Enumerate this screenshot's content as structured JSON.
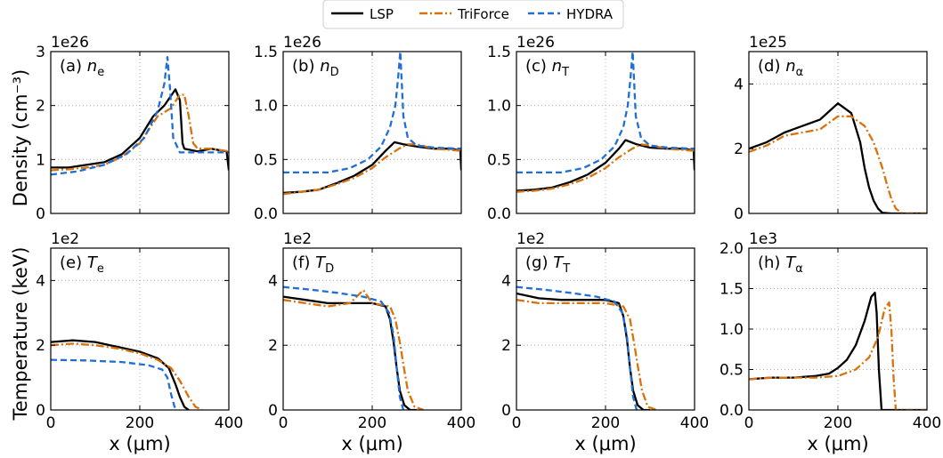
{
  "figure": {
    "legend": [
      {
        "name": "LSP",
        "color": "#000000",
        "dash": "solid"
      },
      {
        "name": "TriForce",
        "color": "#d9720c",
        "dash": "dashdot"
      },
      {
        "name": "HYDRA",
        "color": "#1f6fd6",
        "dash": "dashed"
      }
    ],
    "row_ylabels": [
      "Density (cm⁻³)",
      "Temperature (keV)"
    ],
    "xlabel": "x (μm)"
  },
  "chart_data": [
    {
      "type": "line",
      "id": "ne",
      "title": "(a) n",
      "sub": "e",
      "exp": "1e26",
      "xlim": [
        0,
        400
      ],
      "ylim": [
        0,
        3
      ],
      "yticks": [
        0,
        1,
        2,
        3
      ],
      "ytick_labels": [
        "0",
        "1",
        "2",
        "3"
      ],
      "xticks": [
        0,
        200,
        400
      ],
      "xtick_labels": [
        "0",
        "200",
        "400"
      ],
      "xlabel": "",
      "series": [
        {
          "name": "LSP",
          "x": [
            0,
            40,
            80,
            120,
            160,
            200,
            230,
            255,
            280,
            290,
            296,
            300,
            330,
            360,
            395,
            400
          ],
          "y": [
            0.85,
            0.85,
            0.9,
            0.95,
            1.1,
            1.4,
            1.8,
            2.0,
            2.3,
            2.1,
            1.3,
            1.2,
            1.15,
            1.2,
            1.15,
            0.8
          ]
        },
        {
          "name": "TriForce",
          "x": [
            0,
            40,
            80,
            120,
            160,
            200,
            240,
            270,
            290,
            300,
            310,
            320,
            330,
            360,
            400
          ],
          "y": [
            0.8,
            0.82,
            0.85,
            0.9,
            1.05,
            1.3,
            1.8,
            1.95,
            2.2,
            2.2,
            1.8,
            1.3,
            1.2,
            1.2,
            1.15
          ]
        },
        {
          "name": "HYDRA",
          "x": [
            0,
            60,
            120,
            170,
            210,
            240,
            255,
            262,
            268,
            275,
            290,
            320,
            360,
            400
          ],
          "y": [
            0.72,
            0.78,
            0.9,
            1.1,
            1.4,
            1.9,
            2.4,
            2.9,
            2.3,
            1.4,
            1.13,
            1.13,
            1.13,
            1.13
          ]
        }
      ]
    },
    {
      "type": "line",
      "id": "nD",
      "title": "(b) n",
      "sub": "D",
      "exp": "1e26",
      "xlim": [
        0,
        400
      ],
      "ylim": [
        0,
        1.5
      ],
      "yticks": [
        0,
        0.5,
        1.0,
        1.5
      ],
      "ytick_labels": [
        "0.0",
        "0.5",
        "1.0",
        "1.5"
      ],
      "xticks": [
        0,
        200,
        400
      ],
      "xtick_labels": [
        "0",
        "200",
        "400"
      ],
      "xlabel": "",
      "series": [
        {
          "name": "LSP",
          "x": [
            0,
            40,
            80,
            120,
            160,
            200,
            230,
            250,
            270,
            300,
            340,
            380,
            398,
            400
          ],
          "y": [
            0.19,
            0.2,
            0.22,
            0.28,
            0.35,
            0.45,
            0.58,
            0.66,
            0.64,
            0.62,
            0.6,
            0.6,
            0.58,
            0.4
          ]
        },
        {
          "name": "TriForce",
          "x": [
            0,
            40,
            80,
            120,
            160,
            200,
            230,
            260,
            280,
            300,
            340,
            400
          ],
          "y": [
            0.18,
            0.2,
            0.22,
            0.27,
            0.33,
            0.42,
            0.52,
            0.6,
            0.64,
            0.64,
            0.6,
            0.58
          ]
        },
        {
          "name": "HYDRA",
          "x": [
            0,
            100,
            150,
            190,
            220,
            240,
            252,
            258,
            263,
            270,
            280,
            300,
            340,
            400
          ],
          "y": [
            0.38,
            0.38,
            0.42,
            0.5,
            0.62,
            0.8,
            1.0,
            1.25,
            1.5,
            0.9,
            0.7,
            0.63,
            0.61,
            0.6
          ]
        }
      ]
    },
    {
      "type": "line",
      "id": "nT",
      "title": "(c) n",
      "sub": "T",
      "exp": "1e26",
      "xlim": [
        0,
        400
      ],
      "ylim": [
        0,
        1.5
      ],
      "yticks": [
        0,
        0.5,
        1.0,
        1.5
      ],
      "ytick_labels": [
        "0.0",
        "0.5",
        "1.0",
        "1.5"
      ],
      "xticks": [
        0,
        200,
        400
      ],
      "xtick_labels": [
        "0",
        "200",
        "400"
      ],
      "xlabel": "",
      "series": [
        {
          "name": "LSP",
          "x": [
            0,
            40,
            80,
            120,
            160,
            200,
            230,
            245,
            270,
            300,
            340,
            380,
            398,
            400
          ],
          "y": [
            0.21,
            0.22,
            0.24,
            0.29,
            0.36,
            0.47,
            0.6,
            0.68,
            0.64,
            0.61,
            0.6,
            0.6,
            0.58,
            0.4
          ]
        },
        {
          "name": "TriForce",
          "x": [
            0,
            40,
            80,
            120,
            160,
            200,
            230,
            260,
            280,
            300,
            340,
            400
          ],
          "y": [
            0.2,
            0.21,
            0.23,
            0.27,
            0.33,
            0.42,
            0.52,
            0.6,
            0.64,
            0.63,
            0.6,
            0.58
          ]
        },
        {
          "name": "HYDRA",
          "x": [
            0,
            100,
            150,
            190,
            220,
            240,
            250,
            256,
            261,
            268,
            280,
            300,
            340,
            400
          ],
          "y": [
            0.38,
            0.38,
            0.42,
            0.5,
            0.62,
            0.8,
            1.0,
            1.25,
            1.5,
            0.9,
            0.7,
            0.63,
            0.61,
            0.6
          ]
        }
      ]
    },
    {
      "type": "line",
      "id": "nalpha",
      "title": "(d) n",
      "sub": "α",
      "exp": "1e25",
      "xlim": [
        0,
        400
      ],
      "ylim": [
        0,
        5
      ],
      "yticks": [
        0,
        2,
        4
      ],
      "ytick_labels": [
        "0",
        "2",
        "4"
      ],
      "xticks": [
        0,
        200,
        400
      ],
      "xtick_labels": [
        "0",
        "200",
        "400"
      ],
      "xlabel": "",
      "series": [
        {
          "name": "LSP",
          "x": [
            0,
            40,
            80,
            120,
            160,
            200,
            230,
            250,
            260,
            270,
            280,
            290,
            300,
            320,
            400
          ],
          "y": [
            2.0,
            2.2,
            2.5,
            2.7,
            2.9,
            3.4,
            3.1,
            2.2,
            1.4,
            0.8,
            0.4,
            0.15,
            0.02,
            0,
            0
          ]
        },
        {
          "name": "TriForce",
          "x": [
            0,
            40,
            80,
            120,
            160,
            200,
            230,
            260,
            280,
            290,
            300,
            310,
            320,
            330,
            345,
            400
          ],
          "y": [
            1.9,
            2.1,
            2.4,
            2.5,
            2.6,
            3.0,
            3.0,
            2.7,
            2.2,
            1.8,
            1.4,
            0.9,
            0.45,
            0.15,
            0,
            0
          ]
        }
      ]
    },
    {
      "type": "line",
      "id": "Te",
      "title": "(e) T",
      "sub": "e",
      "exp": "1e2",
      "xlim": [
        0,
        400
      ],
      "ylim": [
        0,
        5
      ],
      "yticks": [
        0,
        2,
        4
      ],
      "ytick_labels": [
        "0",
        "2",
        "4"
      ],
      "xticks": [
        0,
        200,
        400
      ],
      "xtick_labels": [
        "0",
        "200",
        "400"
      ],
      "xlabel": "x (μm)",
      "series": [
        {
          "name": "LSP",
          "x": [
            0,
            50,
            100,
            150,
            200,
            240,
            265,
            280,
            290,
            300,
            310
          ],
          "y": [
            2.1,
            2.15,
            2.1,
            1.95,
            1.8,
            1.6,
            1.3,
            0.8,
            0.4,
            0.1,
            0
          ]
        },
        {
          "name": "TriForce",
          "x": [
            0,
            50,
            100,
            150,
            200,
            240,
            270,
            290,
            310,
            325,
            340
          ],
          "y": [
            2.0,
            2.05,
            2.0,
            1.9,
            1.75,
            1.55,
            1.3,
            0.9,
            0.4,
            0.1,
            0
          ]
        },
        {
          "name": "HYDRA",
          "x": [
            0,
            80,
            160,
            220,
            250,
            262,
            270,
            278,
            285
          ],
          "y": [
            1.55,
            1.53,
            1.48,
            1.38,
            1.25,
            1.0,
            0.5,
            0.1,
            0
          ]
        }
      ]
    },
    {
      "type": "line",
      "id": "TD",
      "title": "(f) T",
      "sub": "D",
      "exp": "1e2",
      "xlim": [
        0,
        400
      ],
      "ylim": [
        0,
        5
      ],
      "yticks": [
        0,
        2,
        4
      ],
      "ytick_labels": [
        "0",
        "2",
        "4"
      ],
      "xticks": [
        0,
        200,
        400
      ],
      "xtick_labels": [
        "0",
        "200",
        "400"
      ],
      "xlabel": "x (μm)",
      "series": [
        {
          "name": "LSP",
          "x": [
            0,
            50,
            100,
            150,
            200,
            230,
            240,
            248,
            255,
            262,
            272,
            285,
            300
          ],
          "y": [
            3.5,
            3.4,
            3.3,
            3.3,
            3.3,
            3.2,
            2.8,
            2.1,
            1.3,
            0.6,
            0.15,
            0,
            0
          ]
        },
        {
          "name": "TriForce",
          "x": [
            0,
            50,
            100,
            150,
            180,
            200,
            240,
            252,
            262,
            270,
            280,
            295,
            315
          ],
          "y": [
            3.4,
            3.3,
            3.2,
            3.3,
            3.7,
            3.3,
            3.2,
            2.8,
            2.1,
            1.4,
            0.6,
            0.1,
            0
          ]
        },
        {
          "name": "HYDRA",
          "x": [
            0,
            60,
            120,
            180,
            220,
            238,
            248,
            255,
            262,
            270
          ],
          "y": [
            3.8,
            3.72,
            3.62,
            3.5,
            3.35,
            3.0,
            2.3,
            1.3,
            0.4,
            0
          ]
        }
      ]
    },
    {
      "type": "line",
      "id": "TT",
      "title": "(g) T",
      "sub": "T",
      "exp": "1e2",
      "xlim": [
        0,
        400
      ],
      "ylim": [
        0,
        5
      ],
      "yticks": [
        0,
        2,
        4
      ],
      "ytick_labels": [
        "0",
        "2",
        "4"
      ],
      "xticks": [
        0,
        200,
        400
      ],
      "xtick_labels": [
        "0",
        "200",
        "400"
      ],
      "xlabel": "x (μm)",
      "series": [
        {
          "name": "LSP",
          "x": [
            0,
            50,
            100,
            150,
            200,
            230,
            240,
            248,
            255,
            262,
            272,
            285,
            300
          ],
          "y": [
            3.6,
            3.45,
            3.4,
            3.4,
            3.4,
            3.3,
            2.9,
            2.2,
            1.3,
            0.6,
            0.15,
            0,
            0
          ]
        },
        {
          "name": "TriForce",
          "x": [
            0,
            50,
            100,
            150,
            200,
            240,
            255,
            265,
            272,
            282,
            295,
            315
          ],
          "y": [
            3.4,
            3.3,
            3.3,
            3.3,
            3.3,
            3.2,
            2.8,
            2.0,
            1.4,
            0.6,
            0.1,
            0
          ]
        },
        {
          "name": "HYDRA",
          "x": [
            0,
            60,
            120,
            180,
            220,
            238,
            248,
            255,
            262,
            270
          ],
          "y": [
            3.8,
            3.72,
            3.62,
            3.5,
            3.35,
            3.0,
            2.3,
            1.3,
            0.4,
            0
          ]
        }
      ]
    },
    {
      "type": "line",
      "id": "Talpha",
      "title": "(h) T",
      "sub": "α",
      "exp": "1e3",
      "xlim": [
        0,
        400
      ],
      "ylim": [
        0,
        2.0
      ],
      "yticks": [
        0,
        0.5,
        1.0,
        1.5,
        2.0
      ],
      "ytick_labels": [
        "0.0",
        "0.5",
        "1.0",
        "1.5",
        "2.0"
      ],
      "xticks": [
        0,
        200,
        400
      ],
      "xtick_labels": [
        "0",
        "200",
        "400"
      ],
      "xlabel": "x (μm)",
      "series": [
        {
          "name": "LSP",
          "x": [
            0,
            50,
            100,
            150,
            180,
            200,
            220,
            240,
            260,
            275,
            283,
            287,
            292,
            298,
            400
          ],
          "y": [
            0.38,
            0.4,
            0.4,
            0.42,
            0.45,
            0.52,
            0.62,
            0.8,
            1.1,
            1.4,
            1.45,
            1.2,
            0.5,
            0,
            0
          ]
        },
        {
          "name": "TriForce",
          "x": [
            0,
            50,
            100,
            150,
            200,
            240,
            270,
            290,
            305,
            315,
            320,
            325,
            330,
            400
          ],
          "y": [
            0.38,
            0.4,
            0.4,
            0.4,
            0.42,
            0.5,
            0.65,
            0.9,
            1.25,
            1.33,
            1.0,
            0.4,
            0,
            0
          ]
        }
      ]
    }
  ]
}
